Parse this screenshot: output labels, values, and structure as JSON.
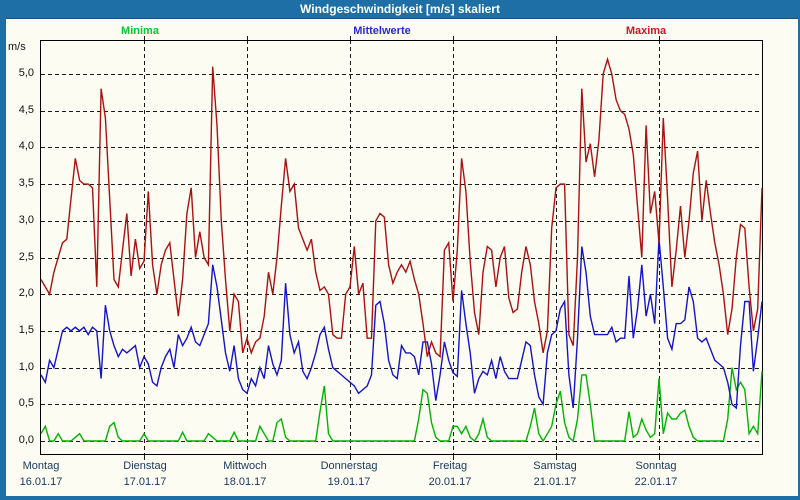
{
  "window": {
    "title": "Windgeschwindigkeit [m/s] skaliert"
  },
  "colors": {
    "titlebar_bg": "#1d6fa5",
    "frame_accent": "#1d6fa5",
    "background": "#fcfcf2",
    "grid": "#1a1a1a",
    "axis_text": "#111111",
    "date_text": "#17375e"
  },
  "chart_data": {
    "type": "line",
    "title": "Windgeschwindigkeit [m/s] skaliert",
    "ylabel": "m/s",
    "ylim": [
      0,
      5.5
    ],
    "grid": true,
    "legend_position": "top",
    "y_ticks": [
      "5,0",
      "4,5",
      "4,0",
      "3,5",
      "3,0",
      "2,5",
      "2,0",
      "1,5",
      "1,0",
      "0,5",
      "0,0"
    ],
    "x_axis": {
      "days": [
        {
          "name": "Montag",
          "date": "16.01.17"
        },
        {
          "name": "Dienstag",
          "date": "17.01.17"
        },
        {
          "name": "Mittwoch",
          "date": "18.01.17"
        },
        {
          "name": "Donnerstag",
          "date": "19.01.17"
        },
        {
          "name": "Freitag",
          "date": "20.01.17"
        },
        {
          "name": "Samstag",
          "date": "21.01.17"
        },
        {
          "name": "Sonntag",
          "date": "22.01.17"
        }
      ],
      "points_per_day": 24
    },
    "series": [
      {
        "name": "Minima",
        "color": "#00b400",
        "legend_color": "#00cc33",
        "values": [
          0.1,
          0.2,
          0.0,
          0.0,
          0.1,
          0.0,
          0.0,
          0.0,
          0.05,
          0.1,
          0.0,
          0.0,
          0.0,
          0.0,
          0.0,
          0.0,
          0.2,
          0.25,
          0.05,
          0.0,
          0.0,
          0.0,
          0.0,
          0.0,
          0.1,
          0.0,
          0.0,
          0.0,
          0.0,
          0.0,
          0.0,
          0.0,
          0.0,
          0.12,
          0.0,
          0.0,
          0.0,
          0.0,
          0.0,
          0.1,
          0.05,
          0.0,
          0.0,
          0.0,
          0.0,
          0.12,
          0.0,
          0.0,
          0.0,
          0.0,
          0.0,
          0.2,
          0.1,
          0.0,
          0.0,
          0.25,
          0.3,
          0.05,
          0.0,
          0.0,
          0.0,
          0.0,
          0.0,
          0.0,
          0.0,
          0.4,
          0.75,
          0.1,
          0.0,
          0.0,
          0.0,
          0.0,
          0.0,
          0.0,
          0.0,
          0.0,
          0.0,
          0.0,
          0.0,
          0.0,
          0.0,
          0.0,
          0.0,
          0.0,
          0.0,
          0.0,
          0.0,
          0.0,
          0.3,
          0.7,
          0.65,
          0.25,
          0.05,
          0.0,
          0.0,
          0.0,
          0.2,
          0.2,
          0.1,
          0.2,
          0.05,
          0.0,
          0.1,
          0.3,
          0.05,
          0.0,
          0.0,
          0.0,
          0.0,
          0.0,
          0.0,
          0.0,
          0.0,
          0.0,
          0.2,
          0.45,
          0.1,
          0.0,
          0.1,
          0.2,
          0.5,
          0.68,
          0.25,
          0.05,
          0.0,
          0.3,
          0.9,
          0.9,
          0.5,
          0.0,
          0.0,
          0.0,
          0.0,
          0.0,
          0.0,
          0.0,
          0.0,
          0.4,
          0.05,
          0.1,
          0.3,
          0.15,
          0.05,
          0.1,
          0.85,
          0.1,
          0.38,
          0.3,
          0.3,
          0.38,
          0.42,
          0.2,
          0.05,
          0.0,
          0.0,
          0.0,
          0.0,
          0.0,
          0.0,
          0.0,
          0.3,
          1.0,
          0.7,
          0.8,
          0.7,
          0.1,
          0.2,
          0.1,
          0.95
        ]
      },
      {
        "name": "Mittelwerte",
        "color": "#1414c8",
        "legend_color": "#2a2ad4",
        "values": [
          0.9,
          0.8,
          1.1,
          1.0,
          1.25,
          1.5,
          1.55,
          1.5,
          1.55,
          1.5,
          1.55,
          1.45,
          1.55,
          1.5,
          0.85,
          1.85,
          1.5,
          1.3,
          1.15,
          1.25,
          1.2,
          1.25,
          1.3,
          1.0,
          1.15,
          1.05,
          0.8,
          0.75,
          1.0,
          1.15,
          1.25,
          1.0,
          1.45,
          1.3,
          1.4,
          1.55,
          1.35,
          1.3,
          1.45,
          1.6,
          2.4,
          2.1,
          1.65,
          1.2,
          0.95,
          1.3,
          0.85,
          0.7,
          0.65,
          0.85,
          0.75,
          1.0,
          0.85,
          1.3,
          1.05,
          0.9,
          1.1,
          2.15,
          1.45,
          1.2,
          1.35,
          0.95,
          0.85,
          1.0,
          1.2,
          1.45,
          1.55,
          1.25,
          1.0,
          0.95,
          0.9,
          0.85,
          0.8,
          0.75,
          0.65,
          0.7,
          0.75,
          0.9,
          1.85,
          1.9,
          1.6,
          1.1,
          0.9,
          0.85,
          1.3,
          1.2,
          1.2,
          1.15,
          0.9,
          1.35,
          1.35,
          1.05,
          0.55,
          0.9,
          1.35,
          1.1,
          0.93,
          0.88,
          2.05,
          1.6,
          1.2,
          0.65,
          0.85,
          0.95,
          0.9,
          1.1,
          0.85,
          1.15,
          0.95,
          0.85,
          0.85,
          0.85,
          1.1,
          1.35,
          1.3,
          0.9,
          0.6,
          0.5,
          1.2,
          1.45,
          1.5,
          1.8,
          1.9,
          0.9,
          0.45,
          1.4,
          2.65,
          2.3,
          1.7,
          1.45,
          1.45,
          1.45,
          1.45,
          1.55,
          1.35,
          1.4,
          1.4,
          2.25,
          1.4,
          1.8,
          2.4,
          1.7,
          2.0,
          1.6,
          2.75,
          2.1,
          1.4,
          1.25,
          1.6,
          1.6,
          1.65,
          2.1,
          1.9,
          1.4,
          1.35,
          1.4,
          1.25,
          1.1,
          1.05,
          1.0,
          0.8,
          0.5,
          0.45,
          1.3,
          1.9,
          1.9,
          0.95,
          1.4,
          1.9
        ]
      },
      {
        "name": "Maxima",
        "color": "#aa1111",
        "legend_color": "#d41428",
        "values": [
          2.2,
          2.1,
          2.0,
          2.3,
          2.5,
          2.7,
          2.75,
          3.3,
          3.85,
          3.55,
          3.5,
          3.5,
          3.45,
          2.1,
          4.8,
          4.4,
          3.3,
          2.2,
          2.1,
          2.6,
          3.1,
          2.25,
          2.75,
          2.35,
          2.45,
          3.4,
          2.4,
          2.0,
          2.4,
          2.6,
          2.7,
          2.2,
          1.7,
          2.2,
          3.1,
          3.45,
          2.5,
          2.85,
          2.5,
          2.4,
          5.1,
          4.3,
          3.0,
          2.2,
          1.5,
          2.0,
          1.9,
          1.2,
          1.4,
          1.2,
          1.35,
          1.4,
          1.7,
          2.3,
          2.0,
          2.5,
          3.2,
          3.85,
          3.4,
          3.5,
          2.9,
          2.75,
          2.6,
          2.75,
          2.3,
          2.05,
          2.1,
          2.0,
          1.45,
          1.4,
          1.4,
          2.0,
          2.1,
          2.65,
          2.0,
          2.15,
          1.4,
          1.4,
          3.0,
          3.1,
          3.05,
          2.4,
          2.15,
          2.3,
          2.4,
          2.3,
          2.45,
          2.2,
          2.0,
          1.6,
          1.15,
          1.35,
          1.2,
          1.15,
          2.6,
          2.7,
          1.9,
          2.6,
          3.85,
          3.4,
          2.45,
          1.75,
          1.45,
          2.3,
          2.65,
          2.6,
          2.1,
          2.5,
          2.65,
          1.95,
          1.75,
          1.8,
          2.3,
          2.65,
          2.4,
          1.9,
          1.6,
          1.2,
          1.5,
          2.9,
          3.45,
          3.5,
          3.5,
          1.45,
          1.3,
          2.5,
          4.8,
          3.8,
          4.05,
          3.6,
          4.1,
          5.0,
          5.2,
          5.0,
          4.65,
          4.5,
          4.45,
          4.25,
          3.9,
          3.2,
          2.5,
          4.3,
          3.1,
          3.4,
          2.7,
          4.4,
          3.3,
          2.1,
          2.6,
          3.2,
          2.5,
          3.0,
          3.65,
          3.95,
          3.0,
          3.55,
          3.1,
          2.7,
          2.4,
          2.0,
          1.45,
          1.8,
          2.5,
          2.95,
          2.9,
          2.1,
          1.5,
          1.8,
          3.45
        ]
      }
    ]
  }
}
